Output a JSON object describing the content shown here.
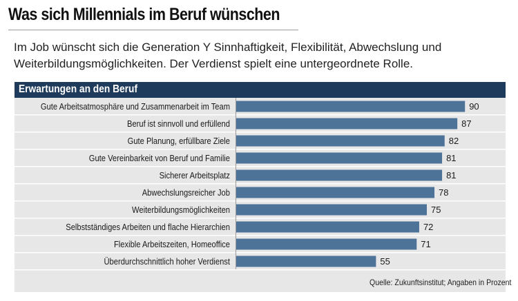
{
  "title": "Was sich Millennials im Beruf wünschen",
  "subtitle": "Im Job wünscht sich die Generation Y Sinnhaftigkeit, Flexibilität, Abwechslung und Weiterbildungsmöglichkeiten. Der Verdienst spielt eine untergeordnete Rolle.",
  "source": "Quelle: Zukunftsinstitut; Angaben in Prozent",
  "colors": {
    "bar": "#4e7399",
    "header": "#1f3b5c",
    "panel": "#e7e7e7",
    "separator": "#ffffff"
  },
  "chart_data": {
    "type": "bar",
    "orientation": "horizontal",
    "title": "Erwartungen an den Beruf",
    "categories": [
      "Gute Arbeitsatmosphäre und Zusammenarbeit im Team",
      "Beruf ist sinnvoll und erfüllend",
      "Gute Planung, erfüllbare Ziele",
      "Gute Vereinbarkeit von Beruf und Familie",
      "Sicherer Arbeitsplatz",
      "Abwechslungsreicher Job",
      "Weiterbildungsmöglichkeiten",
      "Selbstständiges Arbeiten und flache Hierarchien",
      "Flexible Arbeitszeiten, Homeoffice",
      "Überdurchschnittlich hoher Verdienst"
    ],
    "values": [
      90,
      87,
      82,
      81,
      81,
      78,
      75,
      72,
      71,
      55
    ],
    "xlim": [
      0,
      100
    ],
    "grid": false,
    "data_labels": true
  }
}
